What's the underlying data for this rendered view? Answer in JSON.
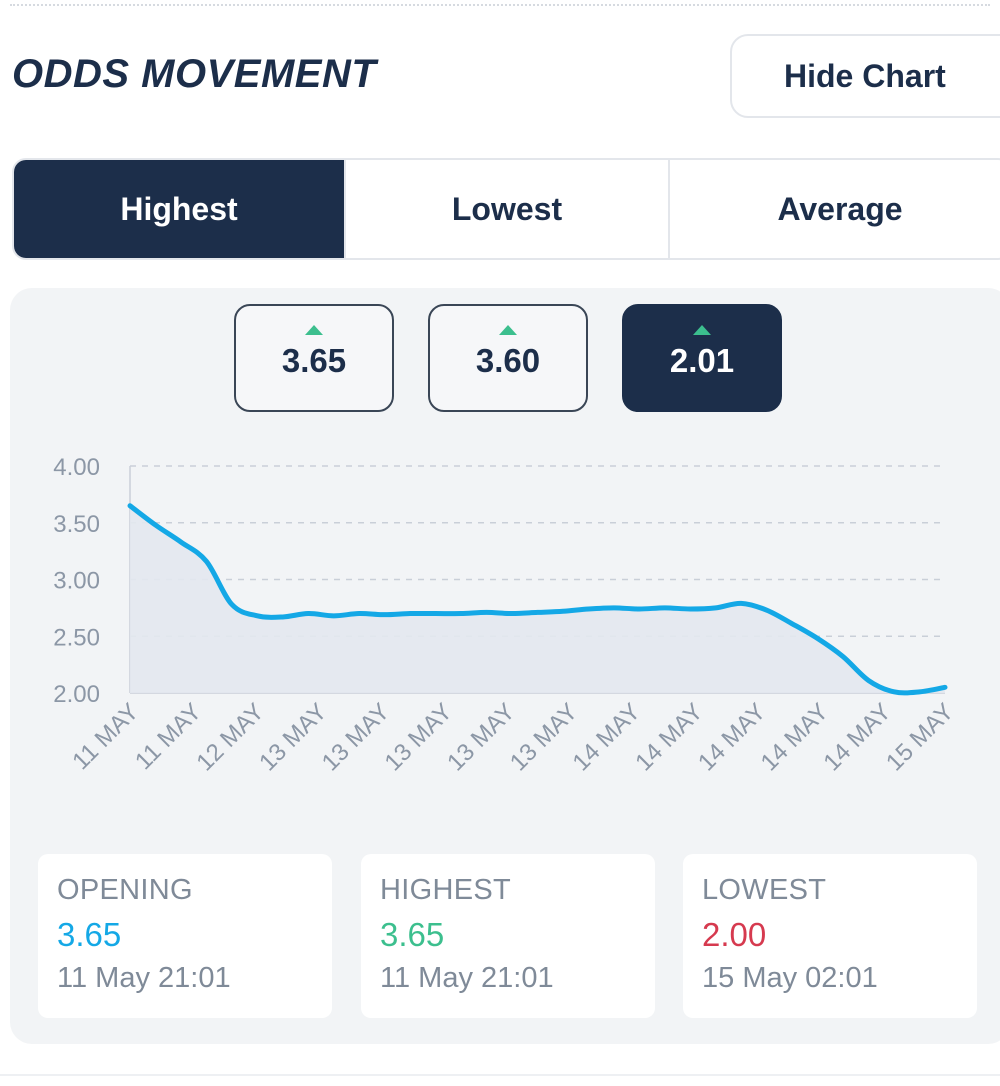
{
  "header": {
    "title": "ODDS MOVEMENT",
    "hide_chart_label": "Hide Chart"
  },
  "tabs": [
    {
      "label": "Highest",
      "active": true
    },
    {
      "label": "Lowest",
      "active": false
    },
    {
      "label": "Average",
      "active": false
    }
  ],
  "odds_selector": [
    {
      "value": "3.65",
      "trend_icon": "up-arrow-icon",
      "selected": false
    },
    {
      "value": "3.60",
      "trend_icon": "up-arrow-icon",
      "selected": false
    },
    {
      "value": "2.01",
      "trend_icon": "up-arrow-icon",
      "selected": true
    }
  ],
  "chart_data": {
    "type": "area",
    "title": "",
    "xlabel": "",
    "ylabel": "",
    "ylim": [
      2.0,
      4.0
    ],
    "y_ticks": [
      "4.00",
      "3.50",
      "3.00",
      "2.50",
      "2.00"
    ],
    "grid": true,
    "x_tick_labels": [
      "11 MAY",
      "11 MAY",
      "12 MAY",
      "13 MAY",
      "13 MAY",
      "13 MAY",
      "13 MAY",
      "13 MAY",
      "14 MAY",
      "14 MAY",
      "14 MAY",
      "14 MAY",
      "14 MAY",
      "15 MAY"
    ],
    "series": [
      {
        "values": [
          3.65,
          3.48,
          3.33,
          3.16,
          2.78,
          2.68,
          2.67,
          2.7,
          2.68,
          2.7,
          2.69,
          2.7,
          2.7,
          2.7,
          2.71,
          2.7,
          2.71,
          2.72,
          2.74,
          2.75,
          2.74,
          2.75,
          2.74,
          2.75,
          2.79,
          2.73,
          2.61,
          2.48,
          2.32,
          2.11,
          2.01,
          2.01,
          2.05
        ]
      }
    ],
    "colors": {
      "line": "#14a8e6",
      "fill": "#e3e8f0",
      "grid": "#c9cfd8",
      "axis_text": "#8c97a6"
    }
  },
  "stats": [
    {
      "label": "OPENING",
      "value": "3.65",
      "time": "11 May 21:01",
      "color": "#14a8e6"
    },
    {
      "label": "HIGHEST",
      "value": "3.65",
      "time": "11 May 21:01",
      "color": "#3cbf8e"
    },
    {
      "label": "LOWEST",
      "value": "2.00",
      "time": "15 May 02:01",
      "color": "#d63a4f"
    }
  ]
}
